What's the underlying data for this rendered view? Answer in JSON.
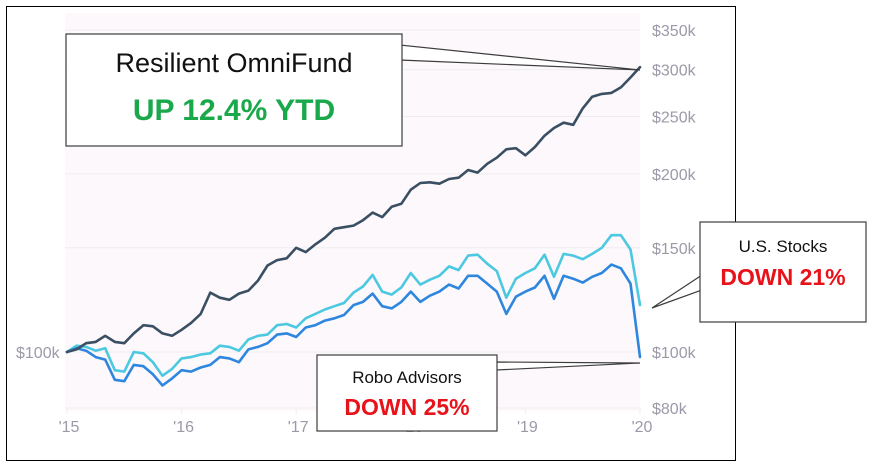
{
  "colors": {
    "omnifund": "#3b4f63",
    "us_stocks": "#4cc9e0",
    "robo": "#2e86de",
    "up": "#19a84a",
    "down": "#e8121a",
    "tick": "#9a9aa8",
    "plot_bg": "#fcf8fc",
    "grid": "#eeeef0"
  },
  "callouts": {
    "omnifund": {
      "name": "Resilient OmniFund",
      "change": "UP 12.4% YTD"
    },
    "us_stocks": {
      "name": "U.S. Stocks",
      "change": "DOWN 21%"
    },
    "robo": {
      "name": "Robo Advisors",
      "change": "DOWN 25%"
    }
  },
  "chart_data": {
    "type": "line",
    "title": "",
    "xlabel": "",
    "ylabel": "",
    "xlim": [
      2015.0,
      2020.0
    ],
    "ylim": [
      80000,
      350000
    ],
    "y_scale": "log",
    "grid": true,
    "x_ticks": [
      {
        "value": 2015,
        "label": "'15"
      },
      {
        "value": 2016,
        "label": "'16"
      },
      {
        "value": 2017,
        "label": "'17"
      },
      {
        "value": 2018,
        "label": "'18"
      },
      {
        "value": 2019,
        "label": "'19"
      },
      {
        "value": 2020,
        "label": "'20"
      }
    ],
    "y_ticks_right": [
      {
        "value": 80000,
        "label": "$80k"
      },
      {
        "value": 100000,
        "label": "$100k"
      },
      {
        "value": 150000,
        "label": "$150k"
      },
      {
        "value": 200000,
        "label": "$200k"
      },
      {
        "value": 250000,
        "label": "$250k"
      },
      {
        "value": 300000,
        "label": "$300k"
      },
      {
        "value": 350000,
        "label": "$350k"
      }
    ],
    "y_ticks_left": [
      {
        "value": 100000,
        "label": "$100k"
      }
    ],
    "series": [
      {
        "key": "omnifund",
        "x": [
          2015.0,
          2015.083,
          2015.167,
          2015.25,
          2015.333,
          2015.417,
          2015.5,
          2015.583,
          2015.667,
          2015.75,
          2015.833,
          2015.917,
          2016.0,
          2016.083,
          2016.167,
          2016.25,
          2016.333,
          2016.417,
          2016.5,
          2016.583,
          2016.667,
          2016.75,
          2016.833,
          2016.917,
          2017.0,
          2017.083,
          2017.167,
          2017.25,
          2017.333,
          2017.417,
          2017.5,
          2017.583,
          2017.667,
          2017.75,
          2017.833,
          2017.917,
          2018.0,
          2018.083,
          2018.167,
          2018.25,
          2018.333,
          2018.417,
          2018.5,
          2018.583,
          2018.667,
          2018.75,
          2018.833,
          2018.917,
          2019.0,
          2019.083,
          2019.167,
          2019.25,
          2019.333,
          2019.417,
          2019.5,
          2019.583,
          2019.667,
          2019.75,
          2019.833,
          2019.917,
          2020.0
        ],
        "y": [
          100000,
          101000,
          103500,
          104000,
          106500,
          104000,
          103500,
          107500,
          111000,
          110500,
          107500,
          106500,
          109000,
          112000,
          116000,
          126000,
          123500,
          122500,
          125500,
          127000,
          132000,
          140000,
          143000,
          144000,
          150000,
          147500,
          152000,
          156000,
          161500,
          162500,
          163500,
          167000,
          172000,
          169000,
          176000,
          178000,
          188000,
          193000,
          193500,
          192500,
          196000,
          197000,
          203000,
          201000,
          208000,
          213000,
          220000,
          221000,
          215000,
          222000,
          232000,
          239000,
          244000,
          242000,
          258000,
          270000,
          273000,
          274000,
          280000,
          291000,
          303000
        ]
      },
      {
        "key": "us_stocks",
        "x": [
          2015.0,
          2015.083,
          2015.167,
          2015.25,
          2015.333,
          2015.417,
          2015.5,
          2015.583,
          2015.667,
          2015.75,
          2015.833,
          2015.917,
          2016.0,
          2016.083,
          2016.167,
          2016.25,
          2016.333,
          2016.417,
          2016.5,
          2016.583,
          2016.667,
          2016.75,
          2016.833,
          2016.917,
          2017.0,
          2017.083,
          2017.167,
          2017.25,
          2017.333,
          2017.417,
          2017.5,
          2017.583,
          2017.667,
          2017.75,
          2017.833,
          2017.917,
          2018.0,
          2018.083,
          2018.167,
          2018.25,
          2018.333,
          2018.417,
          2018.5,
          2018.583,
          2018.667,
          2018.75,
          2018.833,
          2018.917,
          2019.0,
          2019.083,
          2019.167,
          2019.25,
          2019.333,
          2019.417,
          2019.5,
          2019.583,
          2019.667,
          2019.75,
          2019.833,
          2019.917,
          2020.0
        ],
        "y": [
          100000,
          102500,
          102000,
          100500,
          101500,
          93000,
          92500,
          100000,
          99500,
          96000,
          91000,
          93500,
          97500,
          98000,
          99000,
          99500,
          102500,
          102000,
          100500,
          105000,
          106500,
          107000,
          111000,
          111500,
          110000,
          114000,
          116000,
          118000,
          119500,
          121000,
          126000,
          129000,
          135000,
          126500,
          125000,
          128500,
          136000,
          130000,
          132500,
          134500,
          139500,
          137500,
          145500,
          146000,
          141000,
          137000,
          123500,
          133000,
          136000,
          138500,
          146000,
          134000,
          146500,
          145500,
          143500,
          146500,
          150000,
          157500,
          157500,
          149000,
          120000
        ]
      },
      {
        "key": "robo",
        "x": [
          2015.0,
          2015.083,
          2015.167,
          2015.25,
          2015.333,
          2015.417,
          2015.5,
          2015.583,
          2015.667,
          2015.75,
          2015.833,
          2015.917,
          2016.0,
          2016.083,
          2016.167,
          2016.25,
          2016.333,
          2016.417,
          2016.5,
          2016.583,
          2016.667,
          2016.75,
          2016.833,
          2016.917,
          2017.0,
          2017.083,
          2017.167,
          2017.25,
          2017.333,
          2017.417,
          2017.5,
          2017.583,
          2017.667,
          2017.75,
          2017.833,
          2017.917,
          2018.0,
          2018.083,
          2018.167,
          2018.25,
          2018.333,
          2018.417,
          2018.5,
          2018.583,
          2018.667,
          2018.75,
          2018.833,
          2018.917,
          2019.0,
          2019.083,
          2019.167,
          2019.25,
          2019.333,
          2019.417,
          2019.5,
          2019.583,
          2019.667,
          2019.75,
          2019.833,
          2019.917,
          2020.0
        ],
        "y": [
          100000,
          101500,
          100500,
          98000,
          97000,
          89500,
          89000,
          95000,
          94500,
          91500,
          87500,
          90000,
          93000,
          92500,
          94000,
          95000,
          98000,
          97500,
          96000,
          101000,
          102000,
          103500,
          107000,
          107500,
          106000,
          110000,
          111000,
          113000,
          114000,
          115500,
          120000,
          121500,
          125500,
          119500,
          118500,
          121500,
          126500,
          121500,
          124500,
          126500,
          130000,
          128000,
          134500,
          134500,
          130500,
          126500,
          116000,
          124000,
          126500,
          128500,
          134500,
          123000,
          134500,
          133000,
          131000,
          134000,
          136000,
          140500,
          138500,
          130500,
          98000
        ]
      }
    ]
  }
}
